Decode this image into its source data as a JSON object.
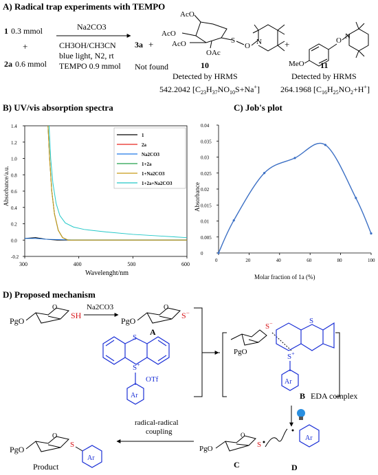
{
  "section_a": {
    "title": "A) Radical trap experiments with TEMPO",
    "reagent1_num": "1",
    "reagent1_amt": "0.3 mmol",
    "plus": "+",
    "reagent2_num": "2a",
    "reagent2_amt": "0.6 mmol",
    "arrow_top": "Na2CO3",
    "cond1": "CH3OH/CH3CN",
    "cond2": "blue light, N2, rt",
    "cond3": "TEMPO 0.9 mmol",
    "prod_3a": "3a",
    "not_found": "Not found",
    "cmpd10_label": "10",
    "cmpd10_detect": "Detected by HRMS",
    "cmpd10_mass": "542.2042 [C23H37NO10S+Na+]",
    "cmpd11_label": "11",
    "cmpd11_detect": "Detected by HRMS",
    "cmpd11_mass": "264.1968 [C16H25NO2+H+]",
    "acos": [
      "AcO",
      "AcO",
      "AcO",
      "OAc"
    ],
    "meo": "MeO"
  },
  "section_b": {
    "title": "B) UV/vis absorption spectra",
    "ylabel": "Absorbance/a.u.",
    "xlabel": "Wavelenght/nm"
  },
  "section_c": {
    "title": "C) Job's plot",
    "ylabel": "Absorbance",
    "xlabel": "Molar fraction of 1a (%)"
  },
  "section_d": {
    "title": "D) Proposed mechanism",
    "na2co3": "Na2CO3",
    "A": "A",
    "B": "B",
    "C": "C",
    "D": "D",
    "eda": "EDA complex",
    "rr1": "radical-radical",
    "rr2": "coupling",
    "product": "Product",
    "pgo": "PgO",
    "sh": "SH",
    "otf": "OTf",
    "ar": "Ar",
    "s": "S"
  },
  "chart_data": [
    {
      "type": "line",
      "title": "UV/vis absorption spectra",
      "xlabel": "Wavelenght/nm",
      "ylabel": "Absorbance/a.u.",
      "xlim": [
        300,
        600
      ],
      "ylim": [
        -0.2,
        1.4
      ],
      "xticks": [
        300,
        400,
        500,
        600
      ],
      "yticks": [
        -0.2,
        0.0,
        0.2,
        0.4,
        0.6,
        0.8,
        1.0,
        1.2,
        1.4
      ],
      "legend_position": "top-right",
      "series": [
        {
          "name": "1",
          "color": "#000000",
          "x": [
            300,
            320,
            340,
            360,
            400,
            500,
            600
          ],
          "y": [
            0.02,
            0.03,
            0.01,
            0.0,
            0.0,
            0.0,
            0.0
          ]
        },
        {
          "name": "2a",
          "color": "#e8251f",
          "x": [
            343,
            346,
            350,
            355,
            362,
            370,
            380,
            600
          ],
          "y": [
            1.4,
            1.0,
            0.6,
            0.32,
            0.12,
            0.03,
            0.0,
            0.0
          ]
        },
        {
          "name": "Na2CO3",
          "color": "#1f78e8",
          "x": [
            300,
            320,
            340,
            400,
            500,
            600
          ],
          "y": [
            0.02,
            0.02,
            0.01,
            0.0,
            0.0,
            0.0
          ]
        },
        {
          "name": "1+2a",
          "color": "#22a04a",
          "x": [
            343,
            346,
            350,
            355,
            362,
            370,
            380,
            600
          ],
          "y": [
            1.4,
            1.0,
            0.6,
            0.32,
            0.12,
            0.03,
            0.0,
            0.0
          ]
        },
        {
          "name": "1+Na2CO3",
          "color": "#c89a16",
          "x": [
            343,
            346,
            350,
            355,
            362,
            370,
            380,
            600
          ],
          "y": [
            1.4,
            1.0,
            0.6,
            0.32,
            0.12,
            0.03,
            0.0,
            0.0
          ]
        },
        {
          "name": "1+2a+Na2CO3",
          "color": "#21c7c7",
          "x": [
            345,
            348,
            352,
            358,
            365,
            375,
            390,
            410,
            450,
            500,
            550,
            600
          ],
          "y": [
            1.4,
            1.0,
            0.7,
            0.45,
            0.3,
            0.21,
            0.16,
            0.13,
            0.1,
            0.07,
            0.05,
            0.03
          ]
        }
      ]
    },
    {
      "type": "line",
      "title": "Job's plot",
      "xlabel": "Molar fraction of 1a (%)",
      "ylabel": "Absorbance",
      "xlim": [
        0,
        100
      ],
      "ylim": [
        0,
        0.04
      ],
      "xticks": [
        0,
        20,
        40,
        60,
        80,
        100
      ],
      "yticks": [
        0,
        0.005,
        0.01,
        0.015,
        0.02,
        0.025,
        0.03,
        0.035,
        0.04
      ],
      "series": [
        {
          "name": "",
          "color": "#3b6fc4",
          "x": [
            0,
            10,
            30,
            50,
            70,
            90,
            100
          ],
          "y": [
            0.0,
            0.0102,
            0.025,
            0.0297,
            0.0338,
            0.0172,
            0.0061
          ]
        }
      ]
    }
  ]
}
